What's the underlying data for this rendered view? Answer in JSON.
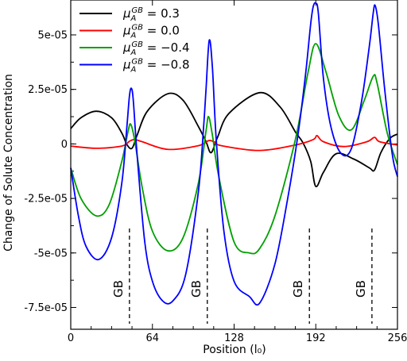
{
  "chart_data": {
    "type": "line",
    "xlabel": "Position (l₀)",
    "ylabel": "Change of Solute Concentration",
    "xlim": [
      0,
      256
    ],
    "ylim": [
      -8.5e-05,
      6.6e-05
    ],
    "x_ticks": [
      0,
      64,
      128,
      192,
      256
    ],
    "x_tick_labels": [
      "0",
      "64",
      "128",
      "192",
      "256"
    ],
    "y_ticks": [
      -7.5e-05,
      -5e-05,
      -2.5e-05,
      0,
      2.5e-05,
      5e-05
    ],
    "y_tick_labels": [
      "-7.5e-05",
      "-5e-05",
      "-2.5e-05",
      "0",
      "2.5e-05",
      "5e-05"
    ],
    "legend_position": "top-left",
    "series": [
      {
        "name": "μ_A^GB = 0.3",
        "color": "#000000",
        "x": [
          0,
          8,
          20,
          32,
          40,
          44,
          48,
          52,
          60,
          76,
          88,
          100,
          106,
          110,
          115,
          124,
          148,
          164,
          176,
          182,
          188,
          192,
          198,
          208,
          222,
          234,
          238,
          243,
          250,
          256
        ],
        "y": [
          7e-06,
          1.2e-05,
          1.5e-05,
          1.2e-05,
          5e-06,
          -3e-07,
          -2e-06,
          4e-06,
          1.5e-05,
          2.3e-05,
          2e-05,
          8e-06,
          1e-06,
          -4e-06,
          3e-06,
          1.4e-05,
          2.35e-05,
          1.7e-05,
          5.5e-06,
          5e-07,
          -8e-06,
          -1.95e-05,
          -1.3e-05,
          -4.5e-06,
          -7e-06,
          -1.1e-05,
          -1.2e-05,
          -4e-06,
          2.5e-06,
          4.5e-06
        ]
      },
      {
        "name": "μ_A^GB = 0.0",
        "color": "#ff0000",
        "x": [
          0,
          20,
          40,
          46,
          50,
          56,
          76,
          100,
          108,
          112,
          118,
          148,
          176,
          190,
          193,
          198,
          214,
          232,
          238,
          242,
          256
        ],
        "y": [
          -1e-06,
          -2e-06,
          -1e-06,
          1.2e-06,
          2e-06,
          1e-06,
          -2.5e-06,
          -8e-07,
          1.5e-06,
          1e-06,
          -8e-07,
          -3e-06,
          -5e-07,
          2e-06,
          3.8e-06,
          1e-06,
          -1.2e-06,
          1e-06,
          3e-06,
          1e-06,
          -5e-07
        ]
      },
      {
        "name": "μ_A^GB = −0.4",
        "color": "#00a000",
        "x": [
          0,
          8,
          20,
          30,
          40,
          45,
          47,
          50,
          56,
          64,
          76,
          88,
          100,
          106,
          108,
          111,
          116,
          128,
          140,
          148,
          160,
          176,
          186,
          192,
          200,
          210,
          220,
          230,
          237,
          240,
          248,
          256
        ],
        "y": [
          -1.1e-05,
          -2.5e-05,
          -3.3e-05,
          -2.8e-05,
          -8e-06,
          6e-06,
          9e-06,
          2e-06,
          -2e-05,
          -4e-05,
          -4.9e-05,
          -4.3e-05,
          -1.8e-05,
          6e-06,
          1.25e-05,
          4e-06,
          -1.5e-05,
          -4.5e-05,
          -5e-05,
          -4.8e-05,
          -3.3e-05,
          2e-06,
          3.3e-05,
          4.6e-05,
          3.3e-05,
          1.3e-05,
          6.5e-06,
          2e-05,
          3.1e-05,
          2.8e-05,
          5e-06,
          -9.5e-06
        ]
      },
      {
        "name": "μ_A^GB = −0.8",
        "color": "#0000ff",
        "x": [
          0,
          6,
          12,
          22,
          32,
          40,
          44,
          46,
          47.5,
          49,
          52,
          58,
          64,
          72,
          80,
          90,
          100,
          104,
          106,
          108.5,
          111,
          114,
          120,
          128,
          140,
          148,
          160,
          170,
          178,
          184,
          188,
          190,
          192,
          194,
          198,
          204,
          212,
          220,
          228,
          234,
          237,
          238.5,
          241,
          246,
          252,
          256
        ],
        "y": [
          -1.1e-05,
          -3.3e-05,
          -4.7e-05,
          -5.3e-05,
          -4.3e-05,
          -1.8e-05,
          8e-06,
          2.2e-05,
          2.55e-05,
          2e-05,
          -5e-06,
          -4.5e-05,
          -6.3e-05,
          -7.2e-05,
          -7.2e-05,
          -6e-05,
          -2.2e-05,
          7e-06,
          2.5e-05,
          4.75e-05,
          3.5e-05,
          2e-06,
          -4e-05,
          -6.3e-05,
          -7e-05,
          -7.3e-05,
          -5.5e-05,
          -2.5e-05,
          4e-06,
          3.2e-05,
          5.5e-05,
          6.3e-05,
          6.45e-05,
          6e-05,
          3e-05,
          7.5e-06,
          -4.5e-06,
          -2e-06,
          2e-05,
          4.5e-05,
          6e-05,
          6.35e-05,
          5.5e-05,
          2.5e-05,
          -5e-06,
          -1.5e-05
        ]
      }
    ],
    "gb_markers": [
      {
        "x": 46,
        "label": "GB"
      },
      {
        "x": 107,
        "label": "GB"
      },
      {
        "x": 187,
        "label": "GB"
      },
      {
        "x": 236,
        "label": "GB"
      }
    ]
  }
}
